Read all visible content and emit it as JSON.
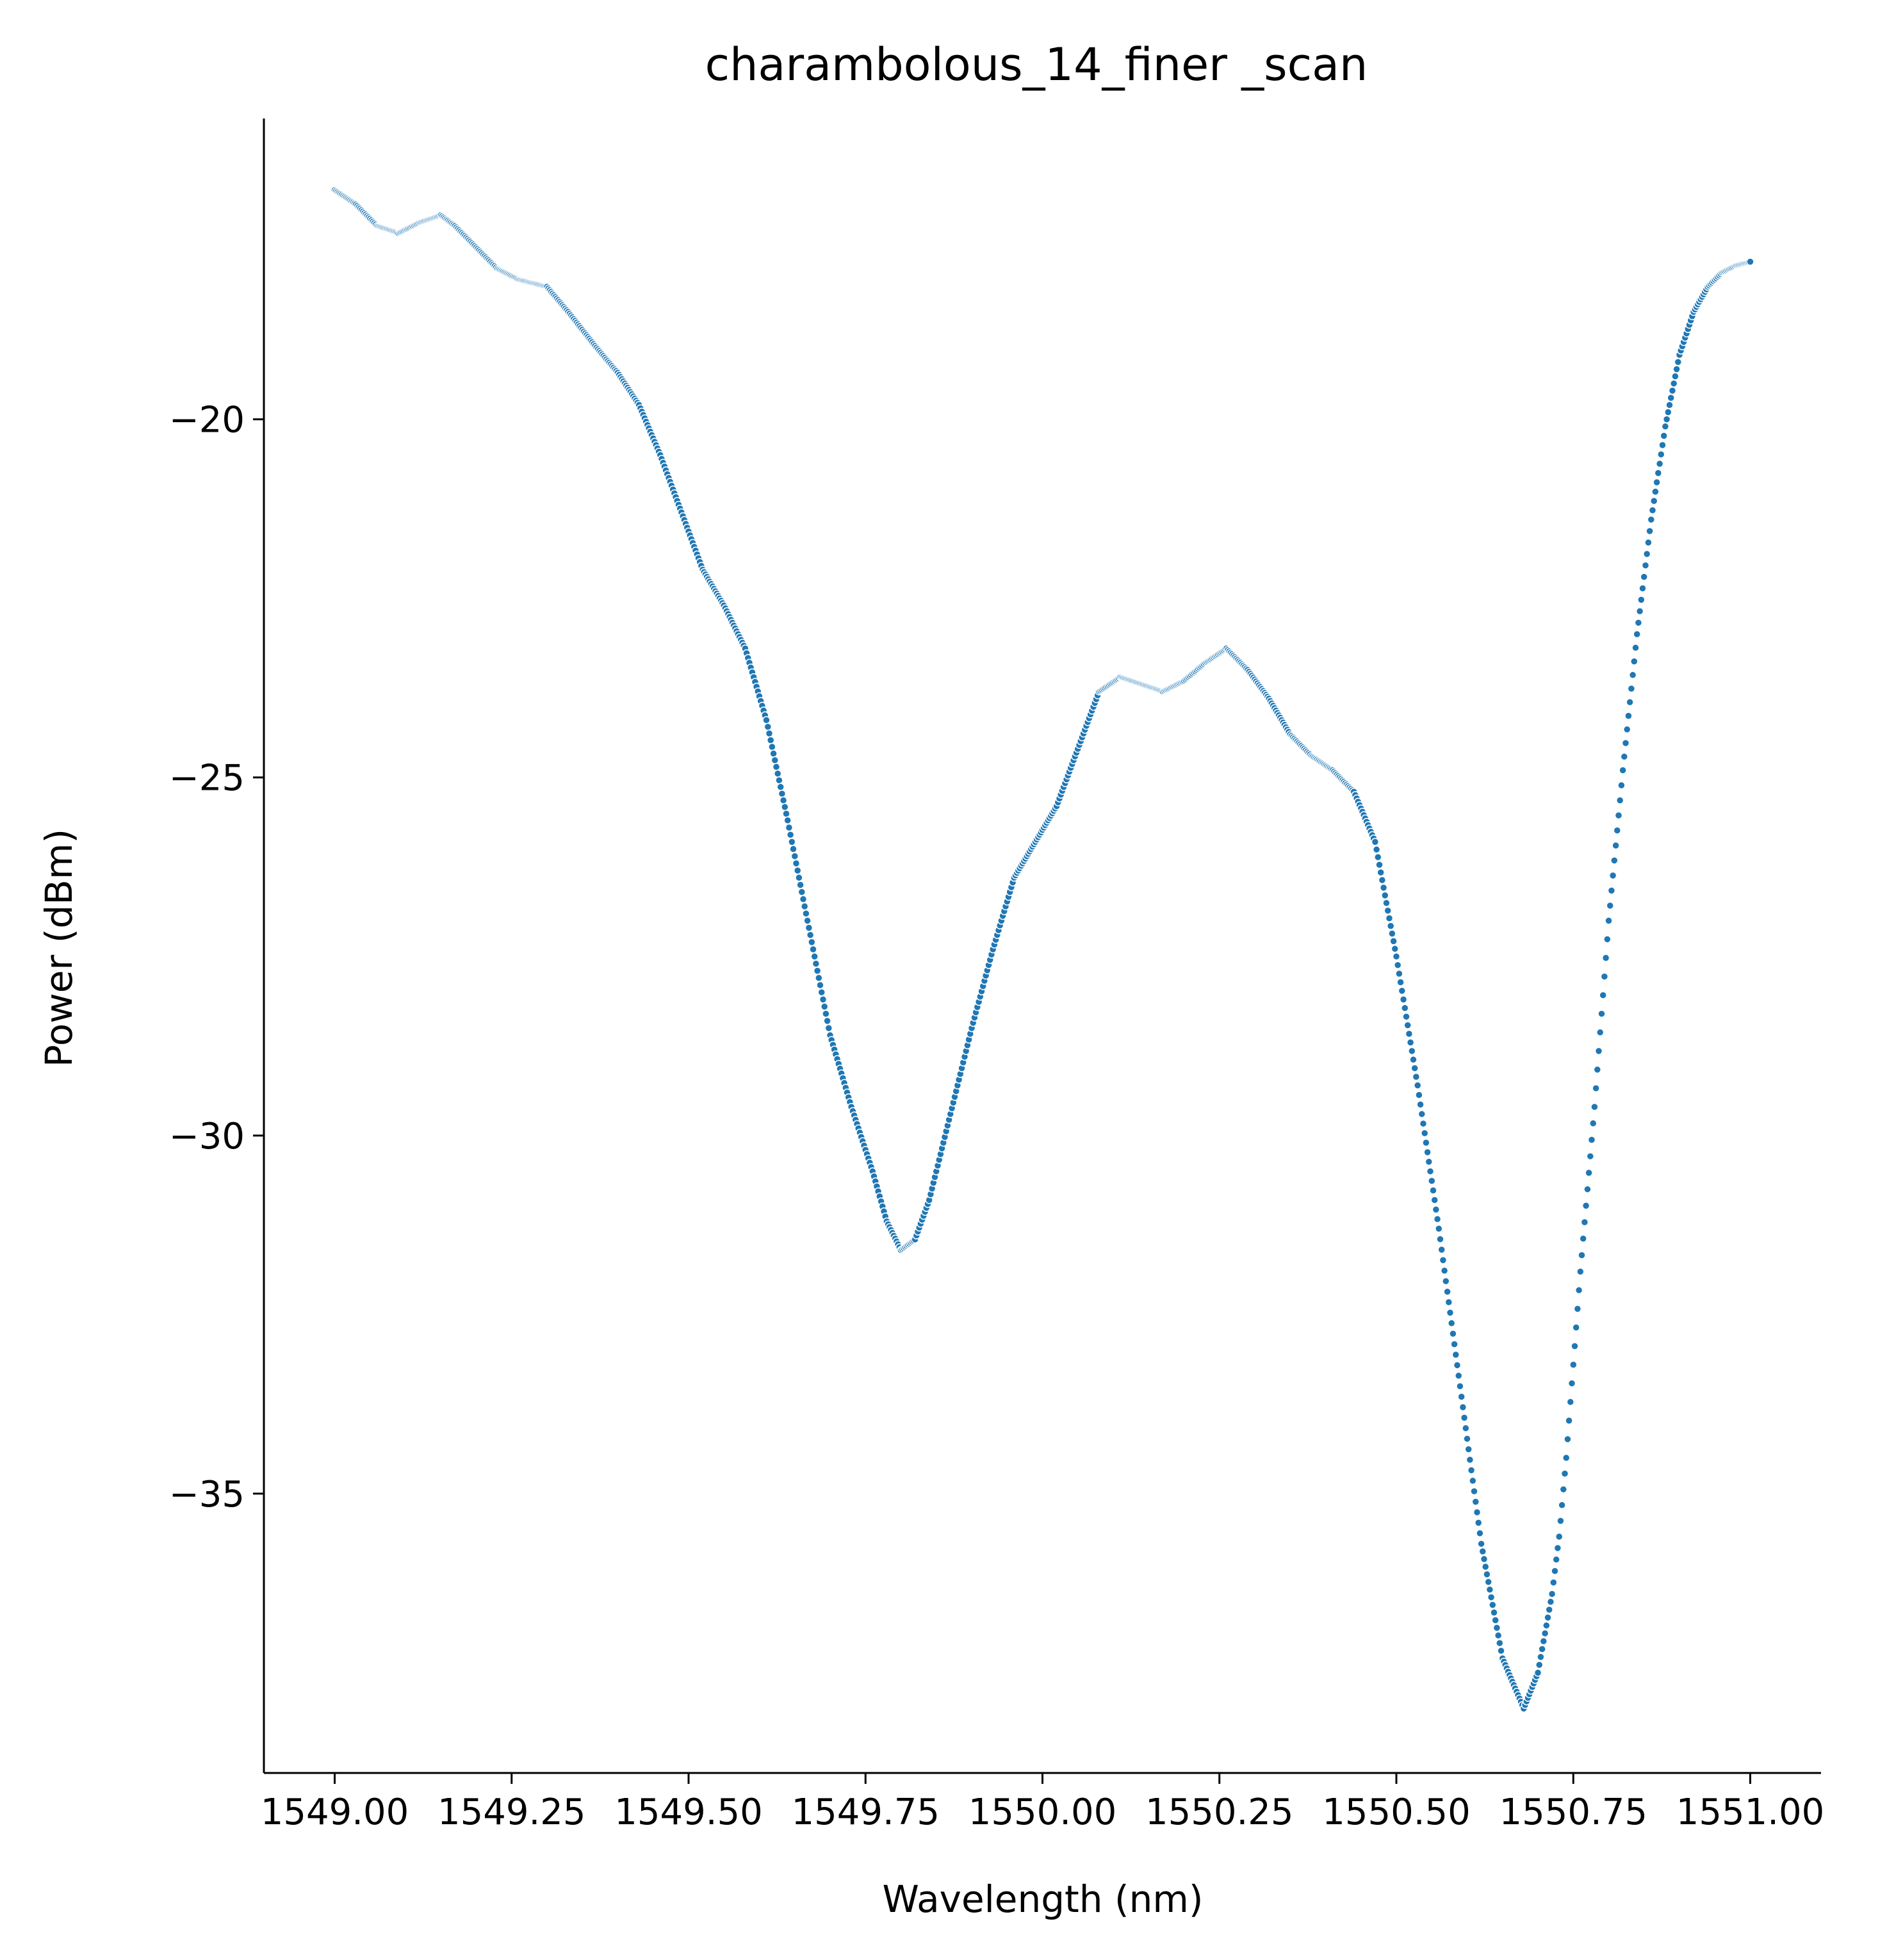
{
  "chart_data": {
    "type": "scatter",
    "title": "charambolous_14_finer _scan",
    "xlabel": "Wavelength (nm)",
    "ylabel": "Power (dBm)",
    "xlim": [
      1548.9,
      1551.1
    ],
    "ylim": [
      -38.9,
      -15.8
    ],
    "x_ticks": [
      1549.0,
      1549.25,
      1549.5,
      1549.75,
      1550.0,
      1550.25,
      1550.5,
      1550.75,
      1551.0
    ],
    "x_tick_labels": [
      "1549.00",
      "1549.25",
      "1549.50",
      "1549.75",
      "1550.00",
      "1550.25",
      "1550.50",
      "1550.75",
      "1551.00"
    ],
    "y_ticks": [
      -20,
      -25,
      -30,
      -35
    ],
    "y_tick_labels": [
      "−20",
      "−25",
      "−30",
      "−35"
    ],
    "grid": false,
    "marker_color": "#1f77b4",
    "marker_edge_color": "#ffffff",
    "x_step": 0.002,
    "x_start": 1549.0,
    "x_end": 1551.0,
    "profile": {
      "x": [
        1549.0,
        1549.03,
        1549.06,
        1549.09,
        1549.12,
        1549.15,
        1549.17,
        1549.2,
        1549.23,
        1549.26,
        1549.3,
        1549.33,
        1549.37,
        1549.4,
        1549.43,
        1549.46,
        1549.49,
        1549.52,
        1549.55,
        1549.58,
        1549.61,
        1549.64,
        1549.67,
        1549.7,
        1549.73,
        1549.76,
        1549.78,
        1549.8,
        1549.82,
        1549.84,
        1549.86,
        1549.9,
        1549.93,
        1549.96,
        1549.99,
        1550.02,
        1550.05,
        1550.08,
        1550.11,
        1550.14,
        1550.17,
        1550.2,
        1550.23,
        1550.26,
        1550.29,
        1550.32,
        1550.35,
        1550.38,
        1550.41,
        1550.44,
        1550.47,
        1550.5,
        1550.53,
        1550.56,
        1550.59,
        1550.62,
        1550.65,
        1550.68,
        1550.7,
        1550.72,
        1550.73,
        1550.74,
        1550.75,
        1550.76,
        1550.78,
        1550.8,
        1550.82,
        1550.84,
        1550.86,
        1550.88,
        1550.9,
        1550.92,
        1550.94,
        1550.96,
        1550.98,
        1551.0
      ],
      "y": [
        -16.8,
        -17.0,
        -17.3,
        -17.4,
        -17.25,
        -17.15,
        -17.3,
        -17.6,
        -17.9,
        -18.05,
        -18.15,
        -18.5,
        -19.0,
        -19.35,
        -19.8,
        -20.5,
        -21.3,
        -22.1,
        -22.6,
        -23.2,
        -24.2,
        -25.6,
        -27.1,
        -28.6,
        -29.6,
        -30.5,
        -31.2,
        -31.6,
        -31.45,
        -30.9,
        -30.1,
        -28.5,
        -27.4,
        -26.4,
        -25.9,
        -25.4,
        -24.6,
        -23.8,
        -23.6,
        -23.7,
        -23.8,
        -23.65,
        -23.4,
        -23.2,
        -23.5,
        -23.9,
        -24.4,
        -24.7,
        -24.9,
        -25.2,
        -25.9,
        -27.5,
        -29.3,
        -31.3,
        -33.5,
        -35.7,
        -37.3,
        -38.0,
        -37.5,
        -36.4,
        -35.6,
        -34.5,
        -33.2,
        -31.9,
        -29.6,
        -27.0,
        -24.9,
        -23.0,
        -21.4,
        -20.1,
        -19.1,
        -18.5,
        -18.15,
        -17.95,
        -17.85,
        -17.8
      ]
    }
  }
}
